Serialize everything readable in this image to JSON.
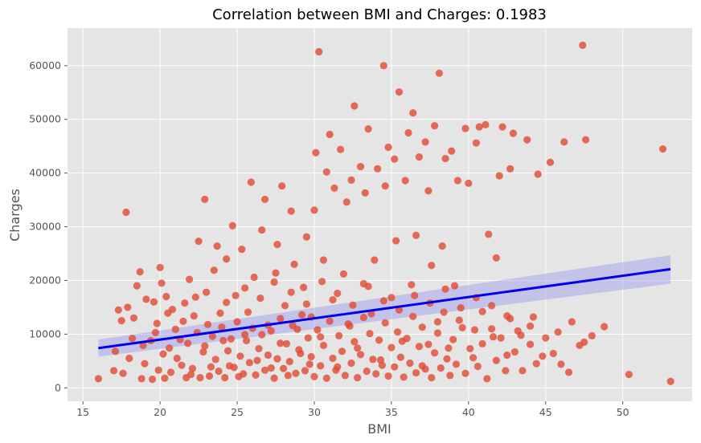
{
  "chart_data": {
    "type": "scatter",
    "title": "Correlation between BMI and Charges: 0.1983",
    "xlabel": "BMI",
    "ylabel": "Charges",
    "xlim": [
      14,
      54.5
    ],
    "ylim": [
      -2500,
      67000
    ],
    "xticks": [
      15,
      20,
      25,
      30,
      35,
      40,
      45,
      50
    ],
    "yticks": [
      0,
      10000,
      20000,
      30000,
      40000,
      50000,
      60000
    ],
    "grid": true,
    "background": "#e5e5e5",
    "grid_color": "#ffffff",
    "point_color": "#e24a33",
    "point_opacity": 0.8,
    "series": [
      {
        "values": [
          [
            16.0,
            1700
          ],
          [
            17.0,
            3200
          ],
          [
            17.3,
            14500
          ],
          [
            17.5,
            12500
          ],
          [
            17.6,
            2700
          ],
          [
            17.8,
            32700
          ],
          [
            17.9,
            15000
          ],
          [
            18.2,
            9200
          ],
          [
            18.3,
            13000
          ],
          [
            18.5,
            19000
          ],
          [
            18.7,
            21600
          ],
          [
            18.8,
            1700
          ],
          [
            19.1,
            16500
          ],
          [
            19.4,
            8800
          ],
          [
            19.6,
            16000
          ],
          [
            19.8,
            12000
          ],
          [
            19.9,
            3300
          ],
          [
            20.0,
            22400
          ],
          [
            20.1,
            19500
          ],
          [
            20.3,
            1800
          ],
          [
            20.4,
            17000
          ],
          [
            20.6,
            7400
          ],
          [
            20.8,
            14600
          ],
          [
            21.1,
            5500
          ],
          [
            21.3,
            9000
          ],
          [
            21.5,
            12400
          ],
          [
            21.7,
            1900
          ],
          [
            21.9,
            20200
          ],
          [
            22.1,
            3600
          ],
          [
            22.3,
            16900
          ],
          [
            22.5,
            27300
          ],
          [
            22.8,
            6700
          ],
          [
            22.9,
            35100
          ],
          [
            23.1,
            11800
          ],
          [
            23.3,
            3900
          ],
          [
            23.5,
            21900
          ],
          [
            23.7,
            26400
          ],
          [
            23.9,
            13900
          ],
          [
            24.1,
            8800
          ],
          [
            24.3,
            24000
          ],
          [
            24.5,
            4100
          ],
          [
            24.7,
            30200
          ],
          [
            24.9,
            17200
          ],
          [
            25.1,
            2100
          ],
          [
            25.3,
            25800
          ],
          [
            25.5,
            9900
          ],
          [
            25.7,
            14100
          ],
          [
            25.9,
            38300
          ],
          [
            26.1,
            20600
          ],
          [
            26.3,
            5100
          ],
          [
            26.6,
            29400
          ],
          [
            26.8,
            35100
          ],
          [
            27.0,
            11700
          ],
          [
            27.2,
            3700
          ],
          [
            27.4,
            19700
          ],
          [
            27.6,
            26700
          ],
          [
            27.8,
            8300
          ],
          [
            27.9,
            37600
          ],
          [
            28.1,
            15300
          ],
          [
            28.3,
            2300
          ],
          [
            28.5,
            32900
          ],
          [
            28.7,
            23000
          ],
          [
            28.9,
            10900
          ],
          [
            29.1,
            6400
          ],
          [
            29.3,
            18700
          ],
          [
            29.5,
            28100
          ],
          [
            29.7,
            4400
          ],
          [
            29.8,
            13200
          ],
          [
            30.0,
            33100
          ],
          [
            30.1,
            43800
          ],
          [
            30.3,
            62600
          ],
          [
            30.4,
            9500
          ],
          [
            30.6,
            23800
          ],
          [
            30.8,
            40200
          ],
          [
            31.0,
            47200
          ],
          [
            31.2,
            16400
          ],
          [
            31.3,
            37200
          ],
          [
            31.5,
            3900
          ],
          [
            31.7,
            44400
          ],
          [
            31.9,
            21200
          ],
          [
            32.1,
            34600
          ],
          [
            32.3,
            11500
          ],
          [
            32.4,
            38700
          ],
          [
            32.6,
            52500
          ],
          [
            32.8,
            7400
          ],
          [
            33.0,
            41200
          ],
          [
            33.2,
            19400
          ],
          [
            33.3,
            36300
          ],
          [
            33.5,
            48200
          ],
          [
            33.7,
            13800
          ],
          [
            33.9,
            23800
          ],
          [
            34.1,
            40800
          ],
          [
            34.3,
            5200
          ],
          [
            34.5,
            60000
          ],
          [
            34.6,
            37600
          ],
          [
            34.8,
            44800
          ],
          [
            35.0,
            16800
          ],
          [
            35.2,
            42600
          ],
          [
            35.3,
            27400
          ],
          [
            35.5,
            55100
          ],
          [
            35.7,
            8700
          ],
          [
            35.9,
            38600
          ],
          [
            36.1,
            47500
          ],
          [
            36.3,
            19200
          ],
          [
            36.4,
            51200
          ],
          [
            36.6,
            28400
          ],
          [
            36.8,
            43000
          ],
          [
            37.0,
            4100
          ],
          [
            37.2,
            45800
          ],
          [
            37.4,
            36700
          ],
          [
            37.6,
            22800
          ],
          [
            37.8,
            48800
          ],
          [
            38.0,
            12300
          ],
          [
            38.1,
            58600
          ],
          [
            38.3,
            26400
          ],
          [
            38.5,
            42700
          ],
          [
            38.7,
            7400
          ],
          [
            38.9,
            44100
          ],
          [
            39.1,
            19000
          ],
          [
            39.3,
            38600
          ],
          [
            39.6,
            11200
          ],
          [
            39.8,
            48300
          ],
          [
            40.0,
            38100
          ],
          [
            40.3,
            5600
          ],
          [
            40.5,
            45600
          ],
          [
            40.7,
            48600
          ],
          [
            40.9,
            14200
          ],
          [
            41.1,
            49000
          ],
          [
            41.3,
            28600
          ],
          [
            41.6,
            9500
          ],
          [
            41.8,
            24200
          ],
          [
            42.0,
            39500
          ],
          [
            42.2,
            48600
          ],
          [
            42.5,
            6100
          ],
          [
            42.7,
            40800
          ],
          [
            42.9,
            47400
          ],
          [
            43.2,
            10600
          ],
          [
            43.5,
            3200
          ],
          [
            43.8,
            46200
          ],
          [
            44.2,
            13200
          ],
          [
            44.5,
            39800
          ],
          [
            44.8,
            5900
          ],
          [
            45.3,
            42000
          ],
          [
            45.8,
            10400
          ],
          [
            46.0,
            4400
          ],
          [
            46.2,
            45800
          ],
          [
            46.7,
            12300
          ],
          [
            47.4,
            63800
          ],
          [
            47.6,
            46200
          ],
          [
            47.5,
            8500
          ],
          [
            48.0,
            9700
          ],
          [
            48.8,
            11400
          ],
          [
            50.4,
            2500
          ],
          [
            52.6,
            44500
          ],
          [
            53.1,
            1200
          ],
          [
            19.0,
            4500
          ],
          [
            19.5,
            1600
          ],
          [
            20.2,
            6300
          ],
          [
            20.7,
            2900
          ],
          [
            21.0,
            10900
          ],
          [
            21.4,
            4200
          ],
          [
            21.8,
            8300
          ],
          [
            22.0,
            2500
          ],
          [
            22.4,
            10300
          ],
          [
            22.6,
            1900
          ],
          [
            22.9,
            7800
          ],
          [
            23.2,
            2200
          ],
          [
            23.4,
            9600
          ],
          [
            23.6,
            5300
          ],
          [
            23.8,
            3100
          ],
          [
            24.0,
            11300
          ],
          [
            24.2,
            1900
          ],
          [
            24.4,
            6900
          ],
          [
            24.6,
            9100
          ],
          [
            24.8,
            3800
          ],
          [
            25.0,
            12300
          ],
          [
            25.2,
            5900
          ],
          [
            25.4,
            2600
          ],
          [
            25.6,
            8800
          ],
          [
            25.8,
            4700
          ],
          [
            26.0,
            11100
          ],
          [
            26.2,
            2400
          ],
          [
            26.4,
            7300
          ],
          [
            26.6,
            9900
          ],
          [
            26.8,
            3300
          ],
          [
            27.0,
            6100
          ],
          [
            27.2,
            10600
          ],
          [
            27.4,
            1800
          ],
          [
            27.6,
            5400
          ],
          [
            27.8,
            12900
          ],
          [
            28.0,
            3600
          ],
          [
            28.2,
            8200
          ],
          [
            28.4,
            4900
          ],
          [
            28.6,
            11600
          ],
          [
            28.8,
            2700
          ],
          [
            29.0,
            7100
          ],
          [
            29.2,
            13600
          ],
          [
            29.4,
            3200
          ],
          [
            29.6,
            9300
          ],
          [
            29.8,
            5800
          ],
          [
            30.0,
            2100
          ],
          [
            30.2,
            10800
          ],
          [
            30.4,
            4100
          ],
          [
            30.6,
            7900
          ],
          [
            30.8,
            1800
          ],
          [
            31.0,
            12400
          ],
          [
            31.2,
            5500
          ],
          [
            31.4,
            3300
          ],
          [
            31.6,
            9700
          ],
          [
            31.8,
            6800
          ],
          [
            32.0,
            2300
          ],
          [
            32.2,
            11900
          ],
          [
            32.4,
            4600
          ],
          [
            32.6,
            8600
          ],
          [
            32.8,
            1900
          ],
          [
            33.0,
            6200
          ],
          [
            33.2,
            13100
          ],
          [
            33.4,
            3100
          ],
          [
            33.6,
            10100
          ],
          [
            33.8,
            5300
          ],
          [
            34.0,
            2600
          ],
          [
            34.2,
            8900
          ],
          [
            34.4,
            4200
          ],
          [
            34.6,
            12100
          ],
          [
            34.8,
            2200
          ],
          [
            35.0,
            7500
          ],
          [
            35.2,
            3900
          ],
          [
            35.4,
            10400
          ],
          [
            35.6,
            5700
          ],
          [
            35.8,
            2000
          ],
          [
            36.0,
            9200
          ],
          [
            36.2,
            4600
          ],
          [
            36.4,
            13300
          ],
          [
            36.6,
            2800
          ],
          [
            36.8,
            7700
          ],
          [
            37.0,
            11300
          ],
          [
            37.2,
            3500
          ],
          [
            37.4,
            8100
          ],
          [
            37.6,
            1900
          ],
          [
            37.8,
            6500
          ],
          [
            38.0,
            10200
          ],
          [
            38.2,
            3700
          ],
          [
            38.4,
            14100
          ],
          [
            38.6,
            5400
          ],
          [
            38.8,
            2300
          ],
          [
            39.0,
            9000
          ],
          [
            39.2,
            4400
          ],
          [
            39.4,
            12600
          ],
          [
            39.8,
            2700
          ],
          [
            40.1,
            7300
          ],
          [
            40.4,
            10800
          ],
          [
            40.6,
            4000
          ],
          [
            40.9,
            8200
          ],
          [
            41.2,
            1700
          ],
          [
            41.5,
            11000
          ],
          [
            41.8,
            5100
          ],
          [
            42.1,
            9300
          ],
          [
            42.4,
            3200
          ],
          [
            42.7,
            12900
          ],
          [
            43.0,
            6700
          ],
          [
            43.4,
            9800
          ],
          [
            44.0,
            8100
          ],
          [
            44.4,
            4500
          ],
          [
            45.0,
            9300
          ],
          [
            45.5,
            6400
          ],
          [
            46.5,
            2900
          ],
          [
            47.2,
            7900
          ],
          [
            17.1,
            6800
          ],
          [
            18.0,
            5500
          ],
          [
            18.9,
            7900
          ],
          [
            19.7,
            10300
          ],
          [
            20.5,
            13900
          ],
          [
            21.6,
            15800
          ],
          [
            22.2,
            13400
          ],
          [
            23.0,
            17800
          ],
          [
            24.3,
            15900
          ],
          [
            25.5,
            18600
          ],
          [
            26.5,
            16700
          ],
          [
            27.5,
            21400
          ],
          [
            28.5,
            17800
          ],
          [
            29.5,
            15600
          ],
          [
            30.5,
            19800
          ],
          [
            31.5,
            17600
          ],
          [
            32.5,
            15400
          ],
          [
            33.5,
            18900
          ],
          [
            34.5,
            16200
          ],
          [
            35.5,
            14500
          ],
          [
            36.5,
            17200
          ],
          [
            37.5,
            15800
          ],
          [
            38.5,
            18400
          ],
          [
            39.5,
            14900
          ],
          [
            40.5,
            16800
          ],
          [
            41.5,
            15300
          ],
          [
            42.5,
            13400
          ],
          [
            44.0,
            11500
          ]
        ]
      }
    ],
    "regression": {
      "color": "#0000ee",
      "band_color": "#9999ee",
      "x": [
        16.0,
        53.1
      ],
      "y": [
        7400,
        22100
      ],
      "ci_low": [
        5800,
        19400
      ],
      "ci_high": [
        9000,
        24700
      ]
    }
  }
}
